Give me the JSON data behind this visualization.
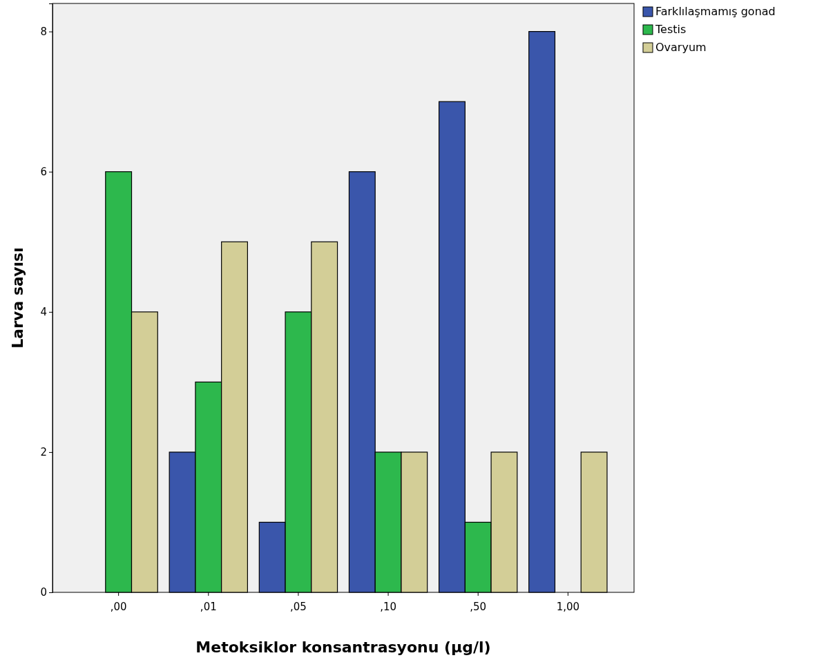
{
  "chart_data": {
    "type": "bar",
    "xlabel": "Metoksiklor konsantrasyonu (µg/l)",
    "ylabel": "Larva sayısı",
    "categories": [
      ",00",
      ",01",
      ",05",
      ",10",
      ",50",
      "1,00"
    ],
    "series": [
      {
        "name": "Farklılaşmamış gonad",
        "color": "#3a56ab",
        "values": [
          0,
          2,
          1,
          6,
          7,
          8
        ]
      },
      {
        "name": "Testis",
        "color": "#2db84d",
        "values": [
          6,
          3,
          4,
          2,
          1,
          0
        ]
      },
      {
        "name": "Ovaryum",
        "color": "#d3ce97",
        "values": [
          4,
          5,
          5,
          2,
          2,
          2
        ]
      }
    ],
    "ylim": [
      0,
      8.4
    ],
    "yticks": [
      0,
      2,
      4,
      6,
      8
    ],
    "grid": false,
    "legend": "top right"
  }
}
